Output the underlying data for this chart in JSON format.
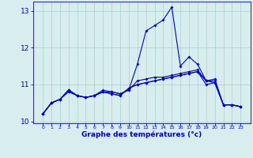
{
  "x": [
    0,
    1,
    2,
    3,
    4,
    5,
    6,
    7,
    8,
    9,
    10,
    11,
    12,
    13,
    14,
    15,
    16,
    17,
    18,
    19,
    20,
    21,
    22,
    23
  ],
  "line1": [
    10.2,
    10.5,
    10.6,
    10.8,
    10.7,
    10.65,
    10.7,
    10.8,
    10.75,
    10.7,
    10.9,
    11.0,
    11.05,
    11.1,
    11.15,
    11.2,
    11.25,
    11.3,
    11.35,
    11.1,
    11.05,
    10.45,
    10.45,
    10.4
  ],
  "line2": [
    10.2,
    10.5,
    10.6,
    10.85,
    10.7,
    10.65,
    10.7,
    10.85,
    10.8,
    10.75,
    10.85,
    11.55,
    12.45,
    12.6,
    12.75,
    13.1,
    11.5,
    11.75,
    11.55,
    11.1,
    11.15,
    10.45,
    10.45,
    10.4
  ],
  "line3": [
    10.2,
    10.5,
    10.6,
    10.85,
    10.7,
    10.65,
    10.7,
    10.8,
    10.75,
    10.7,
    10.9,
    11.0,
    11.05,
    11.1,
    11.15,
    11.2,
    11.25,
    11.3,
    11.35,
    11.0,
    11.05,
    10.45,
    10.45,
    10.4
  ],
  "line4": [
    10.2,
    10.5,
    10.6,
    10.85,
    10.7,
    10.65,
    10.7,
    10.8,
    10.8,
    10.75,
    10.85,
    11.1,
    11.15,
    11.2,
    11.2,
    11.25,
    11.3,
    11.35,
    11.4,
    11.1,
    11.1,
    10.45,
    10.45,
    10.4
  ],
  "bg_color": "#d8eeee",
  "line_color": "#0000cc",
  "grid_color": "#aacccc",
  "xlabel": "Graphe des températures (°c)",
  "ylim": [
    9.95,
    13.25
  ],
  "yticks": [
    10,
    11,
    12,
    13
  ],
  "xticks": [
    0,
    1,
    2,
    3,
    4,
    5,
    6,
    7,
    8,
    9,
    10,
    11,
    12,
    13,
    14,
    15,
    16,
    17,
    18,
    19,
    20,
    21,
    22,
    23
  ],
  "marker": "D",
  "markersize": 2.0,
  "linewidth": 0.8
}
